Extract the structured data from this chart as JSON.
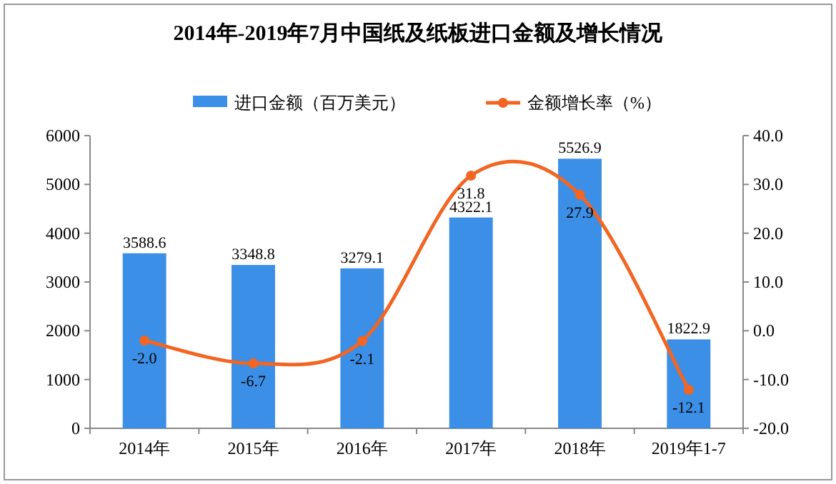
{
  "chart_data": {
    "type": "bar",
    "title": "2014年-2019年7月中国纸及纸板进口金额及增长情况",
    "categories": [
      "2014年",
      "2015年",
      "2016年",
      "2017年",
      "2018年",
      "2019年1-7"
    ],
    "series": [
      {
        "name": "进口金额（百万美元）",
        "color": "#3c8fe6",
        "values": [
          3588.6,
          3348.8,
          3279.1,
          4322.1,
          5526.9,
          1822.9
        ]
      },
      {
        "name": "金额增长率（%）",
        "type": "line",
        "axis": "y2",
        "color": "#f26522",
        "marker": "circle",
        "values": [
          -2.0,
          -6.7,
          -2.1,
          31.8,
          27.9,
          -12.1
        ],
        "value_labels": [
          "-2.0",
          "-6.7",
          "-2.1",
          "31.8",
          "27.9",
          "-12.1"
        ]
      }
    ],
    "ylim": [
      0,
      6000
    ],
    "yticks": [
      0,
      1000,
      2000,
      3000,
      4000,
      5000,
      6000
    ],
    "y2lim": [
      -20,
      40
    ],
    "y2ticks": [
      {
        "value": -20,
        "label": "-20.0"
      },
      {
        "value": -10,
        "label": "-10.0"
      },
      {
        "value": 0,
        "label": "0.0"
      },
      {
        "value": 10,
        "label": "10.0"
      },
      {
        "value": 20,
        "label": "20.0"
      },
      {
        "value": 30,
        "label": "30.0"
      },
      {
        "value": 40,
        "label": "40.0"
      }
    ],
    "data_labels": true,
    "legend": "top",
    "grid": false
  }
}
